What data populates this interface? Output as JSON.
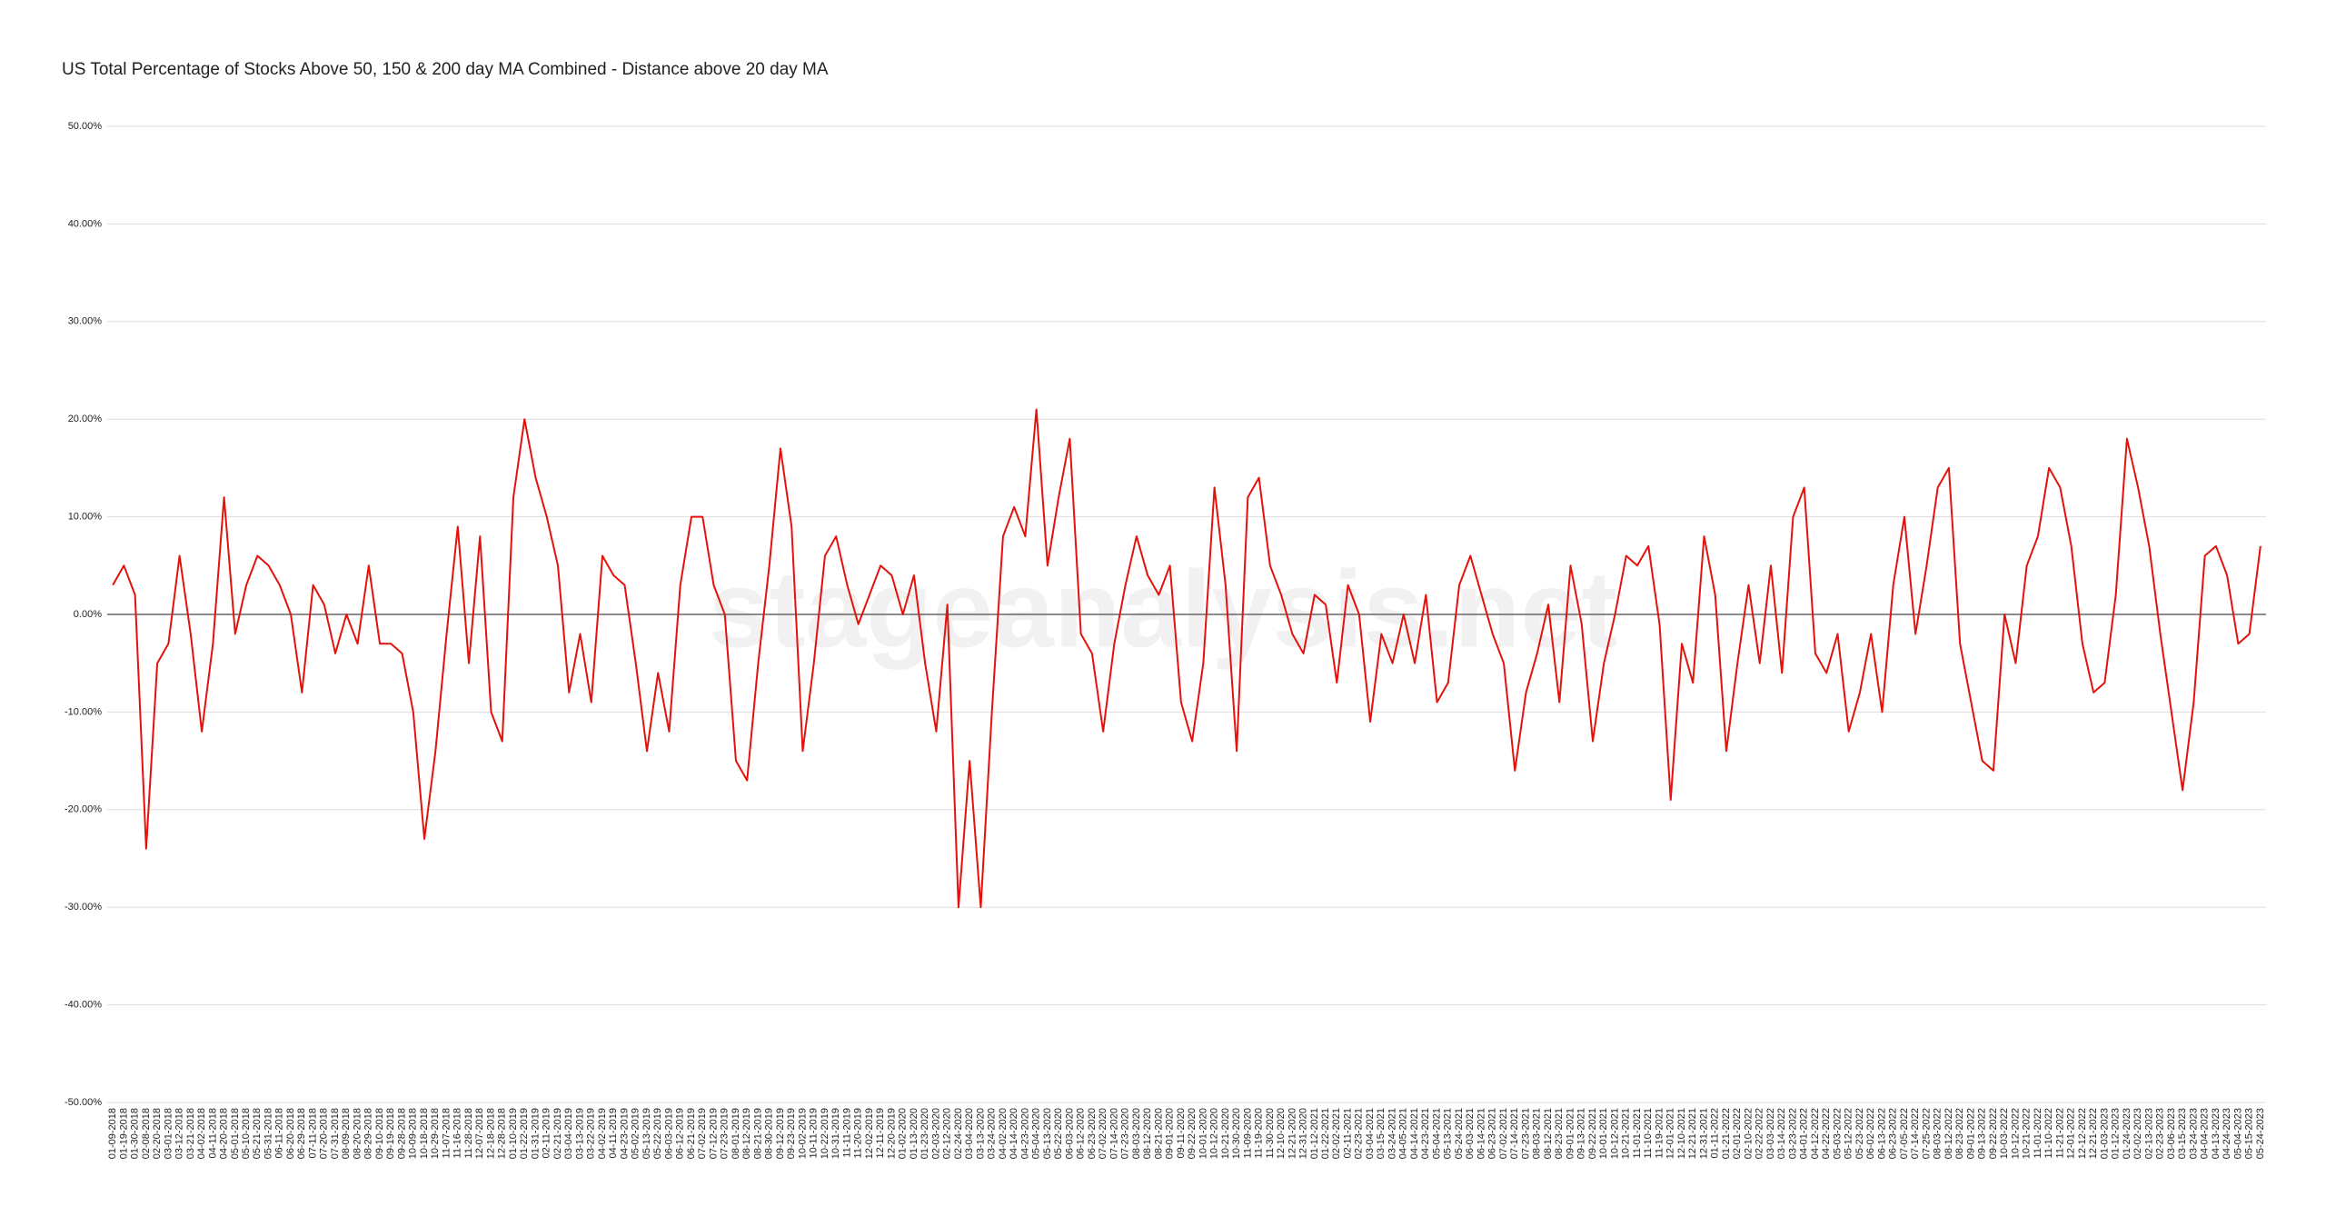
{
  "chart_data": {
    "type": "line",
    "title": "US Total Percentage of Stocks Above 50, 150 & 200 day MA Combined - Distance above 20 day MA",
    "watermark": "stageanalysis.net",
    "categories": [
      "01-09-2018",
      "01-19-2018",
      "01-30-2018",
      "02-08-2018",
      "02-20-2018",
      "03-01-2018",
      "03-12-2018",
      "03-21-2018",
      "04-02-2018",
      "04-11-2018",
      "04-20-2018",
      "05-01-2018",
      "05-10-2018",
      "05-21-2018",
      "05-31-2018",
      "06-11-2018",
      "06-20-2018",
      "06-29-2018",
      "07-11-2018",
      "07-20-2018",
      "07-31-2018",
      "08-09-2018",
      "08-20-2018",
      "08-29-2018",
      "09-10-2018",
      "09-19-2018",
      "09-28-2018",
      "10-09-2018",
      "10-18-2018",
      "10-29-2018",
      "11-07-2018",
      "11-16-2018",
      "11-28-2018",
      "12-07-2018",
      "12-18-2018",
      "12-28-2018",
      "01-10-2019",
      "01-22-2019",
      "01-31-2019",
      "02-11-2019",
      "02-21-2019",
      "03-04-2019",
      "03-13-2019",
      "03-22-2019",
      "04-02-2019",
      "04-11-2019",
      "04-23-2019",
      "05-02-2019",
      "05-13-2019",
      "05-22-2019",
      "06-03-2019",
      "06-12-2019",
      "06-21-2019",
      "07-02-2019",
      "07-12-2019",
      "07-23-2019",
      "08-01-2019",
      "08-12-2019",
      "08-21-2019",
      "08-30-2019",
      "09-12-2019",
      "09-23-2019",
      "10-02-2019",
      "10-11-2019",
      "10-22-2019",
      "10-31-2019",
      "11-11-2019",
      "11-20-2019",
      "12-02-2019",
      "12-11-2019",
      "12-20-2019",
      "01-02-2020",
      "01-13-2020",
      "01-23-2020",
      "02-03-2020",
      "02-12-2020",
      "02-24-2020",
      "03-04-2020",
      "03-13-2020",
      "03-24-2020",
      "04-02-2020",
      "04-14-2020",
      "04-23-2020",
      "05-04-2020",
      "05-13-2020",
      "05-22-2020",
      "06-03-2020",
      "06-12-2020",
      "06-23-2020",
      "07-02-2020",
      "07-14-2020",
      "07-23-2020",
      "08-03-2020",
      "08-12-2020",
      "08-21-2020",
      "09-01-2020",
      "09-11-2020",
      "09-22-2020",
      "10-01-2020",
      "10-12-2020",
      "10-21-2020",
      "10-30-2020",
      "11-09-2020",
      "11-19-2020",
      "11-30-2020",
      "12-10-2020",
      "12-21-2020",
      "12-31-2020",
      "01-12-2021",
      "01-22-2021",
      "02-02-2021",
      "02-11-2021",
      "02-23-2021",
      "03-04-2021",
      "03-15-2021",
      "03-24-2021",
      "04-05-2021",
      "04-14-2021",
      "04-23-2021",
      "05-04-2021",
      "05-13-2021",
      "05-24-2021",
      "06-03-2021",
      "06-14-2021",
      "06-23-2021",
      "07-02-2021",
      "07-14-2021",
      "07-23-2021",
      "08-03-2021",
      "08-12-2021",
      "08-23-2021",
      "09-01-2021",
      "09-13-2021",
      "09-22-2021",
      "10-01-2021",
      "10-12-2021",
      "10-21-2021",
      "11-01-2021",
      "11-10-2021",
      "11-19-2021",
      "12-01-2021",
      "12-10-2021",
      "12-21-2021",
      "12-31-2021",
      "01-11-2022",
      "01-21-2022",
      "02-01-2022",
      "02-10-2022",
      "02-22-2022",
      "03-03-2022",
      "03-14-2022",
      "03-23-2022",
      "04-01-2022",
      "04-12-2022",
      "04-22-2022",
      "05-03-2022",
      "05-12-2022",
      "05-23-2022",
      "06-02-2022",
      "06-13-2022",
      "06-23-2022",
      "07-05-2022",
      "07-14-2022",
      "07-25-2022",
      "08-03-2022",
      "08-12-2022",
      "08-23-2022",
      "09-01-2022",
      "09-13-2022",
      "09-22-2022",
      "10-03-2022",
      "10-12-2022",
      "10-21-2022",
      "11-01-2022",
      "11-10-2022",
      "11-21-2022",
      "12-01-2022",
      "12-12-2022",
      "12-21-2022",
      "01-03-2023",
      "01-12-2023",
      "01-24-2023",
      "02-02-2023",
      "02-13-2023",
      "02-23-2023",
      "03-06-2023",
      "03-15-2023",
      "03-24-2023",
      "04-04-2023",
      "04-13-2023",
      "04-24-2023",
      "05-04-2023",
      "05-15-2023",
      "05-24-2023"
    ],
    "series": [
      {
        "name": "Distance above 20 day MA",
        "color": "#e3120b",
        "values": [
          3,
          5,
          2,
          -24,
          -5,
          -3,
          6,
          -2,
          -12,
          -3,
          12,
          -2,
          3,
          6,
          5,
          3,
          0,
          -8,
          3,
          1,
          -4,
          0,
          -3,
          5,
          -3,
          -3,
          -4,
          -10,
          -23,
          -14,
          -2,
          9,
          -5,
          8,
          -10,
          -13,
          12,
          20,
          14,
          10,
          5,
          -8,
          -2,
          -9,
          6,
          4,
          3,
          -5,
          -14,
          -6,
          -12,
          3,
          10,
          10,
          3,
          0,
          -15,
          -17,
          -5,
          5,
          17,
          9,
          -14,
          -5,
          6,
          8,
          3,
          -1,
          2,
          5,
          4,
          0,
          4,
          -5,
          -12,
          1,
          -30,
          -15,
          -30,
          -10,
          8,
          11,
          8,
          21,
          5,
          12,
          18,
          -2,
          -4,
          -12,
          -3,
          3,
          8,
          4,
          2,
          5,
          -9,
          -13,
          -5,
          13,
          3,
          -14,
          12,
          14,
          5,
          2,
          -2,
          -4,
          2,
          1,
          -7,
          3,
          0,
          -11,
          -2,
          -5,
          0,
          -5,
          2,
          -9,
          -7,
          3,
          6,
          2,
          -2,
          -5,
          -16,
          -8,
          -4,
          1,
          -9,
          5,
          -1,
          -13,
          -5,
          0,
          6,
          5,
          7,
          -1,
          -19,
          -3,
          -7,
          8,
          2,
          -14,
          -5,
          3,
          -5,
          5,
          -6,
          10,
          13,
          -4,
          -6,
          -2,
          -12,
          -8,
          -2,
          -10,
          3,
          10,
          -2,
          5,
          13,
          15,
          -3,
          -9,
          -15,
          -16,
          0,
          -5,
          5,
          8,
          15,
          13,
          7,
          -3,
          -8,
          -7,
          2,
          18,
          13,
          7,
          -2,
          -10,
          -18,
          -9,
          6,
          7,
          4,
          -3,
          -2,
          7
        ]
      }
    ],
    "ylim": [
      -50,
      50
    ],
    "yticks": [
      {
        "value": -50,
        "label": "-50.00%"
      },
      {
        "value": -40,
        "label": "-40.00%"
      },
      {
        "value": -30,
        "label": "-30.00%"
      },
      {
        "value": -20,
        "label": "-20.00%"
      },
      {
        "value": -10,
        "label": "-10.00%"
      },
      {
        "value": 0,
        "label": "0.00%"
      },
      {
        "value": 10,
        "label": "10.00%"
      },
      {
        "value": 20,
        "label": "20.00%"
      },
      {
        "value": 30,
        "label": "30.00%"
      },
      {
        "value": 40,
        "label": "40.00%"
      },
      {
        "value": 50,
        "label": "50.00%"
      }
    ],
    "grid": true
  }
}
